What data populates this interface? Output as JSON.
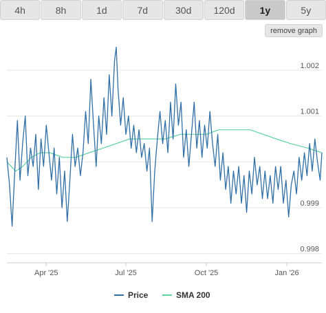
{
  "tabs": [
    {
      "label": "4h",
      "active": false
    },
    {
      "label": "8h",
      "active": false
    },
    {
      "label": "1d",
      "active": false
    },
    {
      "label": "7d",
      "active": false
    },
    {
      "label": "30d",
      "active": false
    },
    {
      "label": "120d",
      "active": false
    },
    {
      "label": "1y",
      "active": true
    },
    {
      "label": "5y",
      "active": false
    }
  ],
  "remove_graph_label": "remove graph",
  "colors": {
    "price": "#2f6ea6",
    "sma": "#5dd39e",
    "grid": "#e6e6e6"
  },
  "chart_data": {
    "type": "line",
    "x_range": [
      "2025-02-15",
      "2026-02-10"
    ],
    "ylim": [
      0.9978,
      1.0026
    ],
    "grid": "horizontal",
    "legend_position": "bottom-center",
    "x_ticks": [
      {
        "date": "2025-04-01",
        "label": "Apr '25"
      },
      {
        "date": "2025-07-01",
        "label": "Jul '25"
      },
      {
        "date": "2025-10-01",
        "label": "Oct '25"
      },
      {
        "date": "2026-01-01",
        "label": "Jan '26"
      }
    ],
    "y_ticks": [
      {
        "value": 0.998,
        "label": "0.998"
      },
      {
        "value": 0.999,
        "label": "0.999"
      },
      {
        "value": 1.0,
        "label": ""
      },
      {
        "value": 1.001,
        "label": "1.001"
      },
      {
        "value": 1.002,
        "label": "1.002"
      }
    ],
    "series": [
      {
        "name": "Price",
        "color": "#2f6ea6",
        "points": [
          [
            "2025-02-15",
            1.0001
          ],
          [
            "2025-02-18",
            0.9995
          ],
          [
            "2025-02-21",
            0.9986
          ],
          [
            "2025-02-24",
            0.9998
          ],
          [
            "2025-02-27",
            1.0009
          ],
          [
            "2025-03-02",
            0.9996
          ],
          [
            "2025-03-05",
            1.0004
          ],
          [
            "2025-03-08",
            1.001
          ],
          [
            "2025-03-11",
            0.9997
          ],
          [
            "2025-03-14",
            1.0003
          ],
          [
            "2025-03-17",
            0.9999
          ],
          [
            "2025-03-20",
            1.0006
          ],
          [
            "2025-03-23",
            0.9994
          ],
          [
            "2025-03-26",
            1.0005
          ],
          [
            "2025-03-29",
            0.9999
          ],
          [
            "2025-04-01",
            1.0008
          ],
          [
            "2025-04-04",
            1.0002
          ],
          [
            "2025-04-07",
            0.9996
          ],
          [
            "2025-04-10",
            1.0003
          ],
          [
            "2025-04-13",
            0.9993
          ],
          [
            "2025-04-16",
            1.0001
          ],
          [
            "2025-04-19",
            0.999
          ],
          [
            "2025-04-22",
            0.9998
          ],
          [
            "2025-04-25",
            0.9987
          ],
          [
            "2025-04-28",
            0.9996
          ],
          [
            "2025-05-01",
            1.0006
          ],
          [
            "2025-05-04",
            0.9999
          ],
          [
            "2025-05-07",
            1.0003
          ],
          [
            "2025-05-10",
            0.9997
          ],
          [
            "2025-05-13",
            1.0002
          ],
          [
            "2025-05-16",
            1.0011
          ],
          [
            "2025-05-19",
            1.0004
          ],
          [
            "2025-05-22",
            1.0018
          ],
          [
            "2025-05-25",
            1.0008
          ],
          [
            "2025-05-28",
            0.9999
          ],
          [
            "2025-05-31",
            1.001
          ],
          [
            "2025-06-03",
            1.0004
          ],
          [
            "2025-06-06",
            1.0014
          ],
          [
            "2025-06-09",
            1.0006
          ],
          [
            "2025-06-12",
            1.0019
          ],
          [
            "2025-06-15",
            1.001
          ],
          [
            "2025-06-18",
            1.0022
          ],
          [
            "2025-06-20",
            1.0025
          ],
          [
            "2025-06-22",
            1.0016
          ],
          [
            "2025-06-25",
            1.0008
          ],
          [
            "2025-06-28",
            1.0014
          ],
          [
            "2025-07-01",
            1.0006
          ],
          [
            "2025-07-04",
            1.001
          ],
          [
            "2025-07-07",
            1.0003
          ],
          [
            "2025-07-10",
            1.0008
          ],
          [
            "2025-07-13",
            1.0002
          ],
          [
            "2025-07-16",
            1.0007
          ],
          [
            "2025-07-19",
            1.0001
          ],
          [
            "2025-07-22",
            1.0004
          ],
          [
            "2025-07-25",
            0.9998
          ],
          [
            "2025-07-28",
            1.0003
          ],
          [
            "2025-07-31",
            0.9987
          ],
          [
            "2025-08-03",
            0.9998
          ],
          [
            "2025-08-06",
            1.0005
          ],
          [
            "2025-08-09",
            1.0011
          ],
          [
            "2025-08-12",
            1.0004
          ],
          [
            "2025-08-15",
            1.0009
          ],
          [
            "2025-08-18",
            1.0002
          ],
          [
            "2025-08-21",
            1.0013
          ],
          [
            "2025-08-24",
            1.0005
          ],
          [
            "2025-08-27",
            1.0017
          ],
          [
            "2025-08-30",
            1.0008
          ],
          [
            "2025-09-02",
            1.0013
          ],
          [
            "2025-09-05",
            1.0001
          ],
          [
            "2025-09-08",
            1.0007
          ],
          [
            "2025-09-11",
            0.9999
          ],
          [
            "2025-09-14",
            1.0006
          ],
          [
            "2025-09-17",
            1.0013
          ],
          [
            "2025-09-20",
            1.0003
          ],
          [
            "2025-09-23",
            1.0009
          ],
          [
            "2025-09-26",
            1.0001
          ],
          [
            "2025-09-29",
            1.0008
          ],
          [
            "2025-10-02",
            1.0003
          ],
          [
            "2025-10-05",
            1.0011
          ],
          [
            "2025-10-08",
            1.0004
          ],
          [
            "2025-10-11",
            0.9999
          ],
          [
            "2025-10-14",
            1.0006
          ],
          [
            "2025-10-17",
            0.9996
          ],
          [
            "2025-10-20",
            1.0002
          ],
          [
            "2025-10-23",
            0.9994
          ],
          [
            "2025-10-26",
            0.9999
          ],
          [
            "2025-10-29",
            0.9991
          ],
          [
            "2025-11-01",
            0.9998
          ],
          [
            "2025-11-04",
            0.9993
          ],
          [
            "2025-11-07",
            0.9999
          ],
          [
            "2025-11-10",
            0.9991
          ],
          [
            "2025-11-13",
            0.9997
          ],
          [
            "2025-11-16",
            0.9989
          ],
          [
            "2025-11-19",
            0.9998
          ],
          [
            "2025-11-22",
            0.9993
          ],
          [
            "2025-11-25",
            1.0001
          ],
          [
            "2025-11-28",
            0.9995
          ],
          [
            "2025-12-01",
            0.9999
          ],
          [
            "2025-12-04",
            0.9992
          ],
          [
            "2025-12-07",
            0.9998
          ],
          [
            "2025-12-10",
            0.9992
          ],
          [
            "2025-12-13",
            0.9997
          ],
          [
            "2025-12-16",
            0.9991
          ],
          [
            "2025-12-19",
            0.9999
          ],
          [
            "2025-12-22",
            0.9994
          ],
          [
            "2025-12-25",
            0.9999
          ],
          [
            "2025-12-28",
            0.9991
          ],
          [
            "2025-12-31",
            0.9996
          ],
          [
            "2026-01-03",
            0.9988
          ],
          [
            "2026-01-06",
            0.9995
          ],
          [
            "2026-01-09",
            0.9998
          ],
          [
            "2026-01-12",
            0.9993
          ],
          [
            "2026-01-15",
            1.0001
          ],
          [
            "2026-01-18",
            0.9996
          ],
          [
            "2026-01-21",
            1.0002
          ],
          [
            "2026-01-24",
            0.9997
          ],
          [
            "2026-01-27",
            1.0004
          ],
          [
            "2026-01-30",
            0.9998
          ],
          [
            "2026-02-02",
            1.0005
          ],
          [
            "2026-02-05",
            1.0
          ],
          [
            "2026-02-08",
            0.9996
          ],
          [
            "2026-02-10",
            1.0002
          ]
        ]
      },
      {
        "name": "SMA 200",
        "color": "#5dd39e",
        "points": [
          [
            "2025-02-15",
            1.0
          ],
          [
            "2025-02-25",
            0.9998
          ],
          [
            "2025-03-05",
            0.9999
          ],
          [
            "2025-03-15",
            1.0001
          ],
          [
            "2025-03-25",
            1.0002
          ],
          [
            "2025-04-05",
            1.0002
          ],
          [
            "2025-04-20",
            1.0001
          ],
          [
            "2025-05-05",
            1.0001
          ],
          [
            "2025-05-20",
            1.0002
          ],
          [
            "2025-06-05",
            1.0003
          ],
          [
            "2025-06-20",
            1.0004
          ],
          [
            "2025-07-05",
            1.0005
          ],
          [
            "2025-07-25",
            1.0005
          ],
          [
            "2025-08-15",
            1.0005
          ],
          [
            "2025-09-01",
            1.0006
          ],
          [
            "2025-09-15",
            1.0006
          ],
          [
            "2025-10-01",
            1.0006
          ],
          [
            "2025-10-15",
            1.0007
          ],
          [
            "2025-11-01",
            1.0007
          ],
          [
            "2025-11-20",
            1.0007
          ],
          [
            "2025-12-05",
            1.0006
          ],
          [
            "2025-12-20",
            1.0005
          ],
          [
            "2026-01-05",
            1.0004
          ],
          [
            "2026-01-25",
            1.0003
          ],
          [
            "2026-02-10",
            1.0002
          ]
        ]
      }
    ]
  }
}
